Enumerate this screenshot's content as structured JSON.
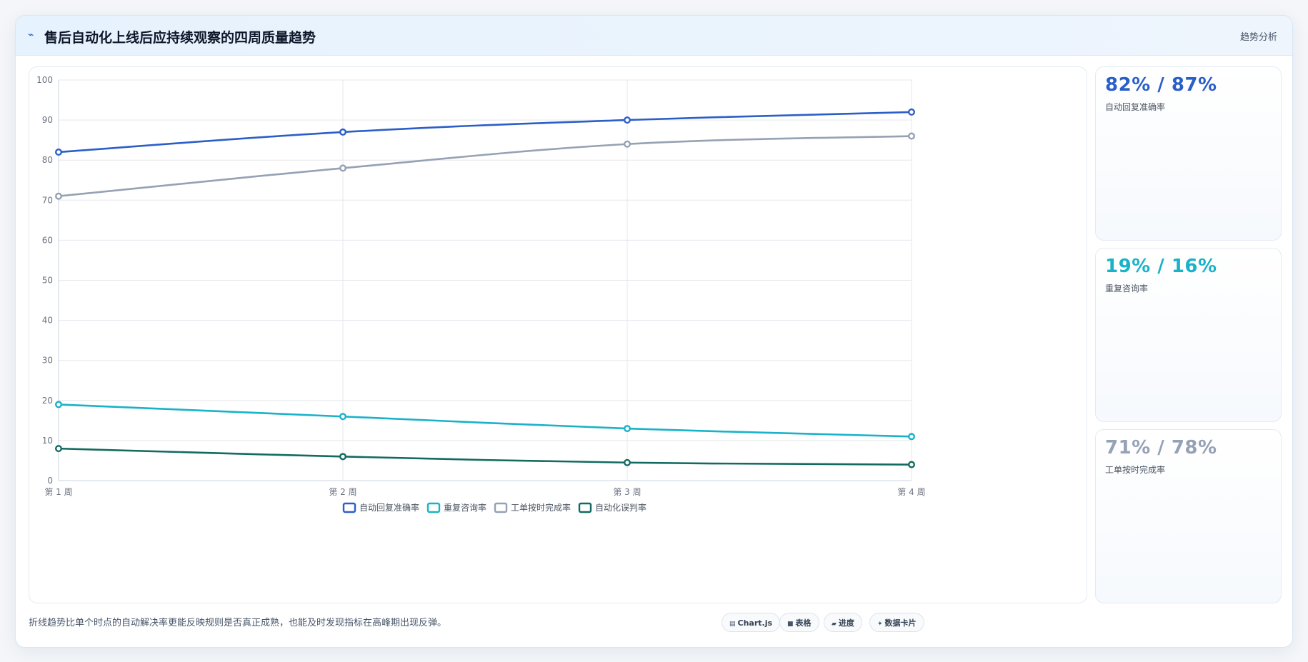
{
  "header": {
    "icon": "trend-icon",
    "title": "售后自动化上线后应持续观察的四周质量趋势",
    "tag": "趋势分析"
  },
  "colors": {
    "blue": "#2b5fc8",
    "cyan": "#19b2c9",
    "gray": "#95a1b4",
    "green": "#116b60"
  },
  "chart_data": {
    "type": "line",
    "title": "",
    "xlabel": "",
    "ylabel": "",
    "categories": [
      "第 1 周",
      "第 2 周",
      "第 3 周",
      "第 4 周"
    ],
    "ylim": [
      0,
      100
    ],
    "yticks": [
      "0",
      "10",
      "20",
      "30",
      "40",
      "50",
      "60",
      "70",
      "80",
      "90",
      "100"
    ],
    "grid": true,
    "legend_position": "bottom",
    "series": [
      {
        "name": "自动回复准确率",
        "values": [
          82,
          87,
          90,
          92
        ],
        "color": "#2b5fc8"
      },
      {
        "name": "重复咨询率",
        "values": [
          19,
          16,
          13,
          11
        ],
        "color": "#19b2c9"
      },
      {
        "name": "工单按时完成率",
        "values": [
          71,
          78,
          84,
          86
        ],
        "color": "#95a1b4"
      },
      {
        "name": "自动化误判率",
        "values": [
          8,
          6,
          4.5,
          4
        ],
        "color": "#116b60"
      }
    ]
  },
  "stats": [
    {
      "value": "82% / 87%",
      "label": "自动回复准确率",
      "color": "#2b5fc8"
    },
    {
      "value": "19% / 16%",
      "label": "重复咨询率",
      "color": "#19b2c9"
    },
    {
      "value": "71% / 78%",
      "label": "工单按时完成率",
      "color": "#95a1b4"
    }
  ],
  "footer": {
    "note": "折线趋势比单个时点的自动解决率更能反映规则是否真正成熟，也能及时发现指标在高峰期出现反弹。",
    "pills": [
      {
        "icon": "chart-icon",
        "glyph": "▤",
        "label": "Chart.js"
      },
      {
        "icon": "table-icon",
        "glyph": "■",
        "label": "表格"
      },
      {
        "icon": "progress-icon",
        "glyph": "▰",
        "label": "进度"
      },
      {
        "icon": "card-icon",
        "glyph": "✦",
        "label": "数据卡片"
      }
    ]
  }
}
